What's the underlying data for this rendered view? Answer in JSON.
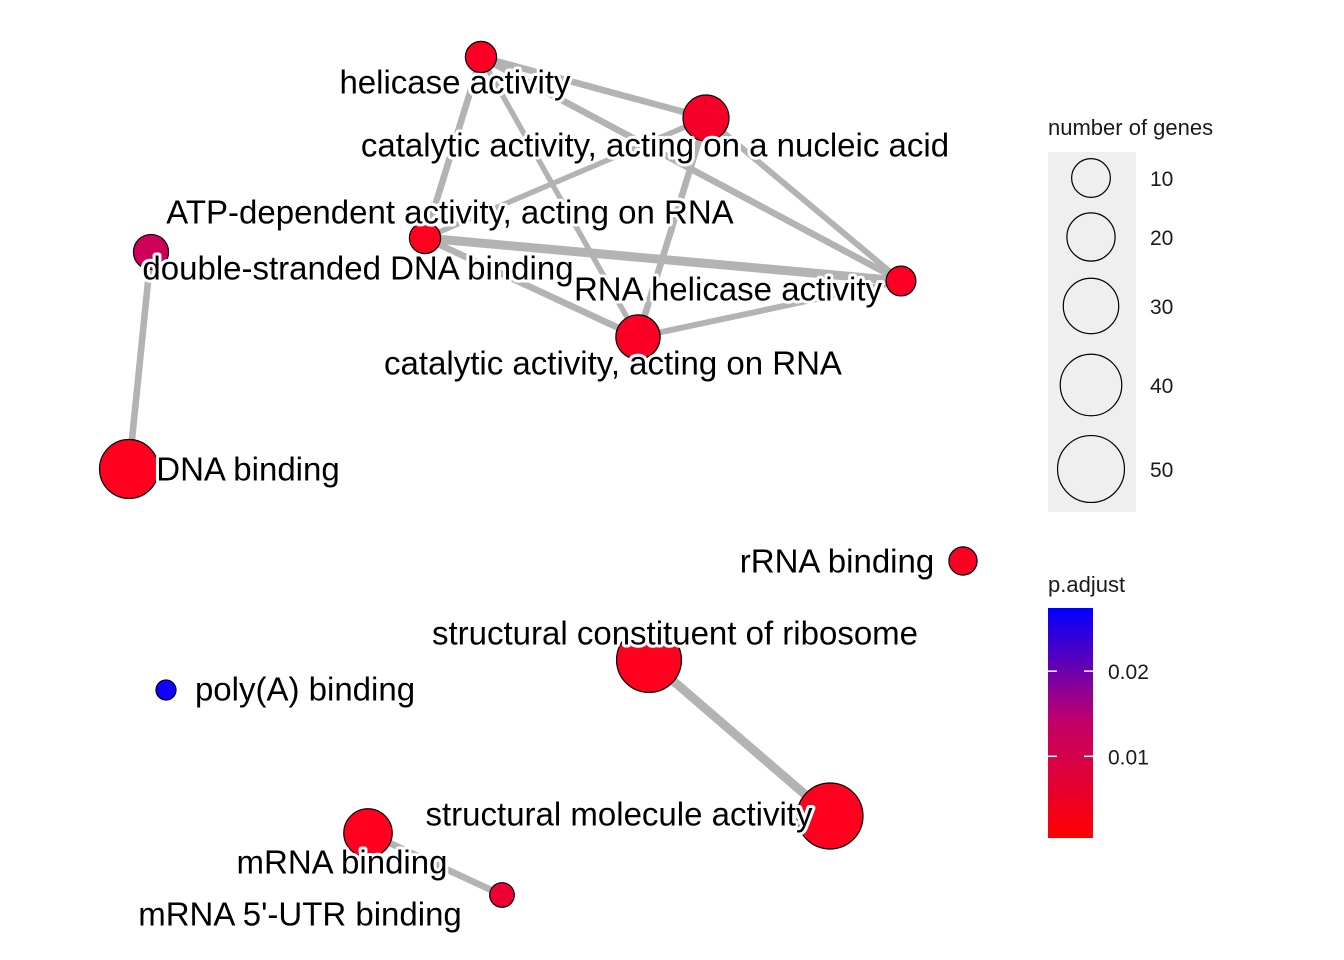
{
  "colors": {
    "edge": "#b3b3b3",
    "node_stroke": "#000000",
    "low_p": "#ff0000",
    "high_p": "#0000ff",
    "legend_bg": "#efefef"
  },
  "nodes": [
    {
      "id": "helicase",
      "label": "helicase activity",
      "genes": 8,
      "p_adjust": 0.002
    },
    {
      "id": "catalytic_nucleic",
      "label": "catalytic activity, acting on a nucleic acid",
      "genes": 22,
      "p_adjust": 0.003
    },
    {
      "id": "atp_dependent",
      "label": "ATP-dependent activity, acting on RNA",
      "genes": 8,
      "p_adjust": 0.001
    },
    {
      "id": "dsDNA",
      "label": "double-stranded DNA binding",
      "genes": 11,
      "p_adjust": 0.012
    },
    {
      "id": "rna_helicase",
      "label": "RNA helicase activity",
      "genes": 7,
      "p_adjust": 0.002
    },
    {
      "id": "catalytic_rna",
      "label": "catalytic activity, acting on RNA",
      "genes": 20,
      "p_adjust": 0.002
    },
    {
      "id": "dna_binding",
      "label": "DNA binding",
      "genes": 40,
      "p_adjust": 0.001
    },
    {
      "id": "rrna",
      "label": "rRNA binding",
      "genes": 6,
      "p_adjust": 0.002
    },
    {
      "id": "ribosome",
      "label": "structural constituent of ribosome",
      "genes": 50,
      "p_adjust": 0.001
    },
    {
      "id": "polyA",
      "label": "poly(A) binding",
      "genes": 2,
      "p_adjust": 0.028
    },
    {
      "id": "structural",
      "label": "structural molecule activity",
      "genes": 52,
      "p_adjust": 0.001
    },
    {
      "id": "mrna",
      "label": "mRNA binding",
      "genes": 25,
      "p_adjust": 0.001
    },
    {
      "id": "mrna_utr",
      "label": "mRNA 5'-UTR binding",
      "genes": 4,
      "p_adjust": 0.005
    }
  ],
  "edges": [
    {
      "from": "helicase",
      "to": "catalytic_nucleic",
      "weight": 0.6
    },
    {
      "from": "helicase",
      "to": "atp_dependent",
      "weight": 0.6
    },
    {
      "from": "helicase",
      "to": "rna_helicase",
      "weight": 0.6
    },
    {
      "from": "helicase",
      "to": "catalytic_rna",
      "weight": 0.4
    },
    {
      "from": "catalytic_nucleic",
      "to": "atp_dependent",
      "weight": 0.4
    },
    {
      "from": "catalytic_nucleic",
      "to": "rna_helicase",
      "weight": 0.5
    },
    {
      "from": "catalytic_nucleic",
      "to": "catalytic_rna",
      "weight": 0.6
    },
    {
      "from": "atp_dependent",
      "to": "rna_helicase",
      "weight": 1.0
    },
    {
      "from": "atp_dependent",
      "to": "catalytic_rna",
      "weight": 0.6
    },
    {
      "from": "catalytic_rna",
      "to": "rna_helicase",
      "weight": 0.5
    },
    {
      "from": "dsDNA",
      "to": "dna_binding",
      "weight": 0.6
    },
    {
      "from": "ribosome",
      "to": "structural",
      "weight": 1.0
    },
    {
      "from": "mrna",
      "to": "mrna_utr",
      "weight": 0.6
    }
  ],
  "legend": {
    "size_title": "number of genes",
    "size_items": [
      {
        "genes": 10,
        "label": "10"
      },
      {
        "genes": 20,
        "label": "20"
      },
      {
        "genes": 30,
        "label": "30"
      },
      {
        "genes": 40,
        "label": "40"
      },
      {
        "genes": 50,
        "label": "50"
      }
    ],
    "color_title": "p.adjust",
    "color_range": [
      0.001,
      0.028
    ],
    "color_ticks": [
      {
        "value": 0.02,
        "label": "0.02"
      },
      {
        "value": 0.01,
        "label": "0.01"
      }
    ]
  }
}
